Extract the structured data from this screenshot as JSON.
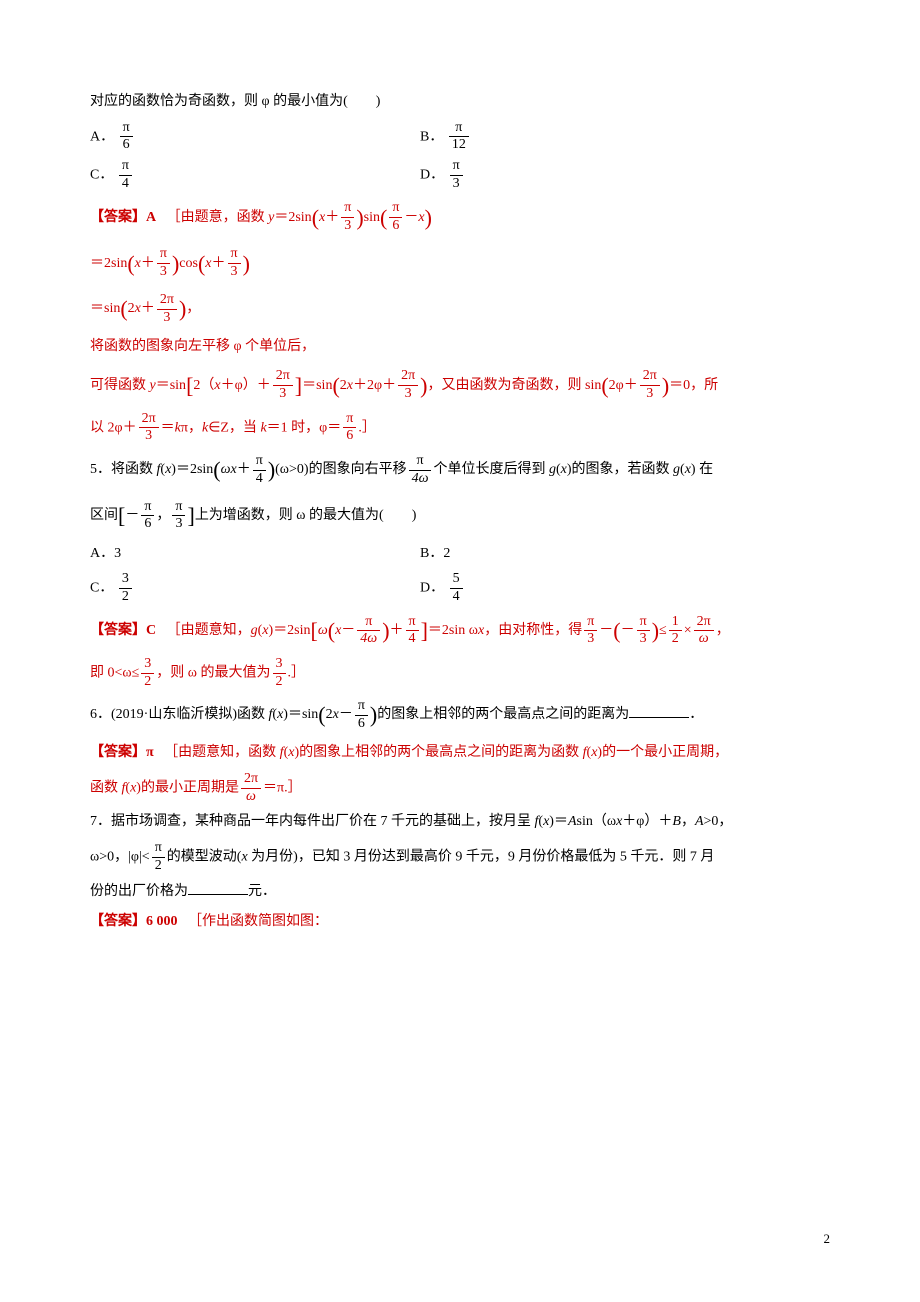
{
  "colors": {
    "text": "#000000",
    "answer": "#cc0000",
    "background": "#ffffff"
  },
  "typography": {
    "body_font": "SimSun, 宋体, serif",
    "math_font": "Times New Roman, serif",
    "body_fontsize": 14,
    "line_height": 1.9
  },
  "q4": {
    "stem": "对应的函数恰为奇函数，则 φ 的最小值为(　　)",
    "opt_a_prefix": "A．",
    "opt_a_num": "π",
    "opt_a_den": "6",
    "opt_b_prefix": "B．",
    "opt_b_num": "π",
    "opt_b_den": "12",
    "opt_c_prefix": "C．",
    "opt_c_num": "π",
    "opt_c_den": "4",
    "opt_d_prefix": "D．",
    "opt_d_num": "π",
    "opt_d_den": "3",
    "ans_label": "【答案】A",
    "ans_l1_pre": "［由题意，函数 ",
    "ans_l1_y": "y",
    "ans_l1_eq": "＝2sin",
    "ans_l1_x1": "x",
    "ans_l1_plus": "＋",
    "ans_l1_f1n": "π",
    "ans_l1_f1d": "3",
    "ans_l1_sin": "sin",
    "ans_l1_f2n": "π",
    "ans_l1_f2d": "6",
    "ans_l1_minus": "－",
    "ans_l1_x2": "x",
    "ans_l2_pre": "＝2sin",
    "ans_l2_x1": "x",
    "ans_l2_plus": "＋",
    "ans_l2_f1n": "π",
    "ans_l2_f1d": "3",
    "ans_l2_cos": "cos",
    "ans_l2_x2": "x",
    "ans_l2_f2n": "π",
    "ans_l2_f2d": "3",
    "ans_l3_pre": "＝sin",
    "ans_l3_2x": "2",
    "ans_l3_x": "x",
    "ans_l3_plus": "＋",
    "ans_l3_fn": "2π",
    "ans_l3_fd": "3",
    "ans_l3_comma": "，",
    "ans_l4": "将函数的图象向左平移 φ 个单位后，",
    "ans_l5_pre": "可得函数 ",
    "ans_l5_y": "y",
    "ans_l5_eq": "＝sin",
    "ans_l5_b1": "2（",
    "ans_l5_x": "x",
    "ans_l5_plus": "＋φ）＋",
    "ans_l5_fn": "2π",
    "ans_l5_fd": "3",
    "ans_l5_mid": "＝sin",
    "ans_l5_2x": "2",
    "ans_l5_xx": "x",
    "ans_l5_p2": "＋2φ＋",
    "ans_l5_fn2": "2π",
    "ans_l5_fd2": "3",
    "ans_l5_tail": "，又由函数为奇函数，则 sin",
    "ans_l5_2phi": "2φ＋",
    "ans_l5_fn3": "2π",
    "ans_l5_fd3": "3",
    "ans_l5_end": "＝0，所",
    "ans_l6_pre": "以 2φ＋",
    "ans_l6_fn": "2π",
    "ans_l6_fd": "3",
    "ans_l6_mid": "＝",
    "ans_l6_k": "k",
    "ans_l6_pi": "π，",
    "ans_l6_kin": "k",
    "ans_l6_inz": "∈Z，当 ",
    "ans_l6_k2": "k",
    "ans_l6_eq1": "＝1 时，φ＝",
    "ans_l6_rn": "π",
    "ans_l6_rd": "6",
    "ans_l6_end": ".］"
  },
  "q5": {
    "num": "5．将函数 ",
    "fx": "f",
    "x": "x",
    "eq": "＝2sin",
    "omega": "ω",
    "xx": "x",
    "plus": "＋",
    "fn": "π",
    "fd": "4",
    "cond": "(ω>0)的图象向右平移",
    "sfn": "π",
    "sfd": "4ω",
    "tail": "个单位长度后得到 ",
    "gx": "g",
    "gx_x": "x",
    "tail2": "的图象，若函数 ",
    "gx2": "g",
    "gx2_x": "x",
    "tail3": " 在",
    "l2_pre": "区间",
    "l2_a_n": "π",
    "l2_a_d": "6",
    "l2_b_n": "π",
    "l2_b_d": "3",
    "l2_tail": "上为增函数，则 ω 的最大值为(　　)",
    "opt_a": "A．3",
    "opt_b": "B．2",
    "opt_c_prefix": "C．",
    "opt_c_num": "3",
    "opt_c_den": "2",
    "opt_d_prefix": "D．",
    "opt_d_num": "5",
    "opt_d_den": "4",
    "ans_label": "【答案】C",
    "ans_pre": "［由题意知，",
    "ans_g": "g",
    "ans_gx": "x",
    "ans_eq": "＝2sin",
    "ans_omega": "ω",
    "ans_x": "x",
    "ans_minus": "－",
    "ans_f1n": "π",
    "ans_f1d": "4ω",
    "ans_plus": "＋",
    "ans_f2n": "π",
    "ans_f2d": "4",
    "ans_mid": "＝2sin ω",
    "ans_xx": "x",
    "ans_sym": "，由对称性，得",
    "ans_f3n": "π",
    "ans_f3d": "3",
    "ans_m2": "－",
    "ans_neg": "－",
    "ans_f4n": "π",
    "ans_f4d": "3",
    "ans_le": "≤",
    "ans_f5n": "1",
    "ans_f5d": "2",
    "ans_times": "×",
    "ans_f6n": "2π",
    "ans_f6d": "ω",
    "ans_comma": "，",
    "ans_l2_pre": "即 0<ω≤",
    "ans_l2_fn": "3",
    "ans_l2_fd": "2",
    "ans_l2_mid": "，则 ω 的最大值为",
    "ans_l2_rn": "3",
    "ans_l2_rd": "2",
    "ans_l2_end": ".］"
  },
  "q6": {
    "num": "6．(2019·山东临沂模拟)函数 ",
    "fx": "f",
    "x": "x",
    "eq": "＝sin",
    "two": "2",
    "xx": "x",
    "minus": "－",
    "fn": "π",
    "fd": "6",
    "tail": "的图象上相邻的两个最高点之间的距离为",
    "blank": "　　　　　",
    "period": "．",
    "ans_label": "【答案】π",
    "ans_l1": "［由题意知，函数 ",
    "ans_fx": "f",
    "ans_x": "x",
    "ans_mid": "的图象上相邻的两个最高点之间的距离为函数 ",
    "ans_fx2": "f",
    "ans_x2": "x",
    "ans_tail": "的一个最小正周期，",
    "ans_l2_pre": "函数 ",
    "ans_l2_fx": "f",
    "ans_l2_x": "x",
    "ans_l2_mid": "的最小正周期是",
    "ans_l2_fn": "2π",
    "ans_l2_fd": "ω",
    "ans_l2_end": "＝π.］"
  },
  "q7": {
    "num": "7．据市场调查，某种商品一年内每件出厂价在 7 千元的基础上，按月呈 ",
    "fx": "f",
    "x": "x",
    "eq": "＝",
    "A": "A",
    "sin": "sin（ω",
    "xx": "x",
    "phi": "＋φ）＋",
    "B": "B",
    "cond": "，",
    "A2": "A",
    "cond2": ">0，",
    "l2_pre": "ω>0，|φ|<",
    "l2_fn": "π",
    "l2_fd": "2",
    "l2_mid": "的模型波动(",
    "l2_x": "x",
    "l2_tail": " 为月份)，已知 3 月份达到最高价 9 千元，9 月份价格最低为 5 千元．则 7 月",
    "l3": "份的出厂价格为",
    "l3_blank": "　　　　",
    "l3_end": "元．",
    "ans_label": "【答案】6 000",
    "ans_text": "［作出函数简图如图："
  },
  "page_number": "2"
}
